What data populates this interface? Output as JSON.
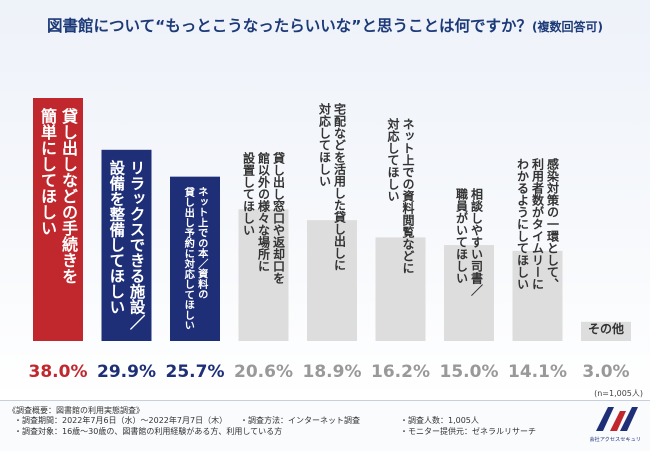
{
  "chart_data": {
    "type": "bar",
    "title": "図書館について“もっとこうなったらいいな”と思うことは何ですか？",
    "subtitle": "(複数回答可)",
    "categories": [
      "貸し出しなどの手続きを簡単にしてほしい",
      "リラックスできる施設／設備を整備してほしい",
      "ネット上での本／資料の貸し出し予約に対応してほしい",
      "貸し出し窓口や返却口を館以外の様々な場所に設置してほしい",
      "宅配などを活用した貸し出しに対応してほしい",
      "ネット上での資料閲覧などに対応してほしい",
      "相談しやすい司書／職員がいてほしい",
      "感染対策の一環として、利用者数がタイムリーにわかるようにしてほしい",
      "その他"
    ],
    "category_label_lines": [
      [
        "貸し出しなどの手続きを",
        "簡単にしてほしい"
      ],
      [
        "リラックスできる施設／",
        "設備を整備してほしい"
      ],
      [
        "ネット上での本／資料の",
        "貸し出し予約に対応してほしい"
      ],
      [
        "貸し出し窓口や返却口を",
        "館以外の様々な場所に",
        "設置してほしい"
      ],
      [
        "宅配などを活用した貸し出しに",
        "対応してほしい"
      ],
      [
        "ネット上での資料閲覧などに",
        "対応してほしい"
      ],
      [
        "相談しやすい司書／",
        "職員がいてほしい"
      ],
      [
        "感染対策の一環として、",
        "利用者数がタイムリーに",
        "わかるようにしてほしい"
      ],
      [
        "その他"
      ]
    ],
    "values": [
      38.0,
      29.9,
      25.7,
      20.6,
      18.9,
      16.2,
      15.0,
      14.1,
      3.0
    ],
    "value_labels": [
      "38.0%",
      "29.9%",
      "25.7%",
      "20.6%",
      "18.9%",
      "16.2%",
      "15.0%",
      "14.1%",
      "3.0%"
    ],
    "unit": "%",
    "ylim": [
      0,
      38
    ],
    "note": "(n=1,005人)",
    "colors": {
      "highlight_1": "#c0282d",
      "highlight_2": "#1e2f78",
      "other": "#dddddd",
      "value_highlight_1": "#c0282d",
      "value_highlight_2": "#1e2f78",
      "value_other": "#999999",
      "text_on_dark": "#ffffff",
      "text_on_light": "#333333"
    }
  },
  "footer": {
    "heading": "《調査概要：図書館の利用実態調査》",
    "period": "・調査期間：2022年7月6日（水）～2022年7月7日（木）",
    "method": "・調査方法：インターネット調査",
    "count": "・調査人数：1,005人",
    "target": "・調査対象：16歳～30歳の、図書館の利用経験がある方、利用している方",
    "provider": "・モニター提供元：ゼネラルリサーチ"
  },
  "logo": {
    "mark": "A/S",
    "company": "株式会社アクセスセキュリティ"
  }
}
